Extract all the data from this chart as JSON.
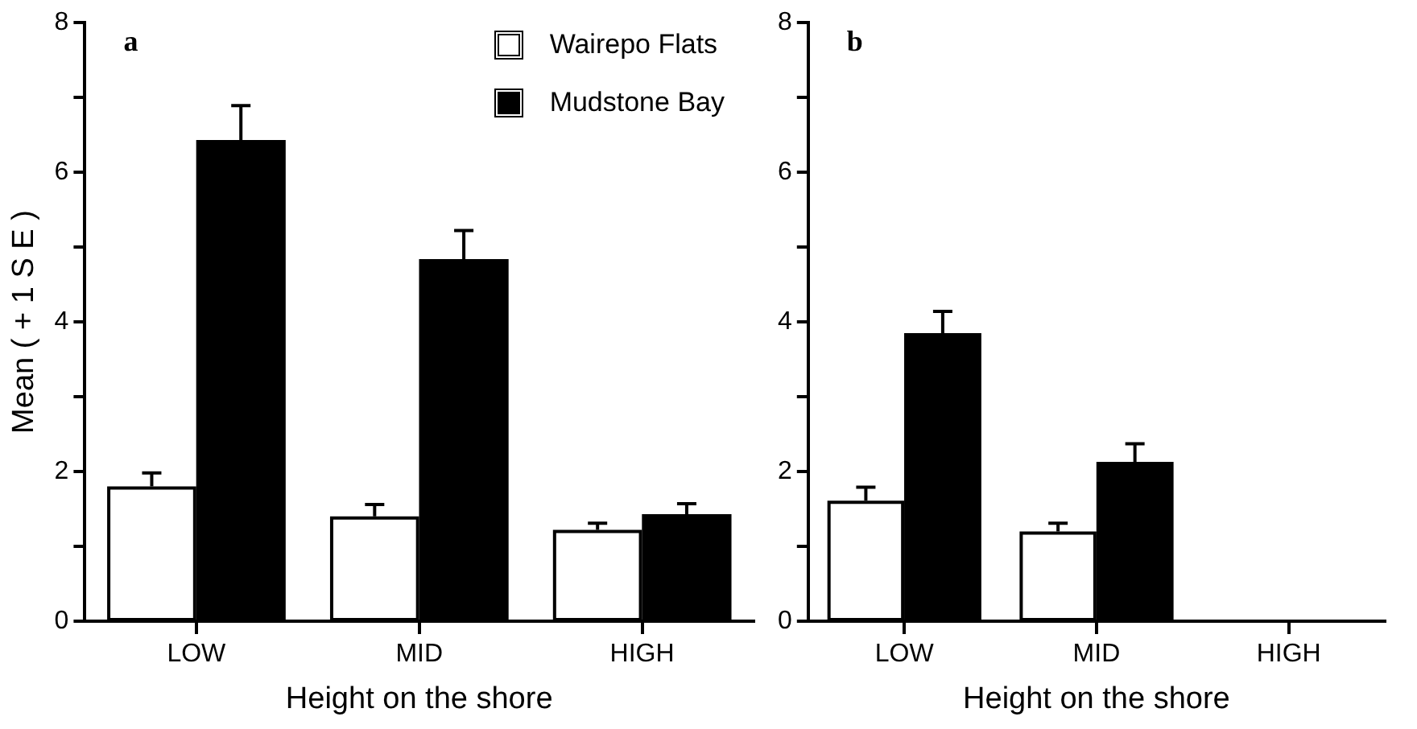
{
  "chart_data": [
    {
      "type": "bar",
      "title": "a",
      "xlabel": "Height on the shore",
      "ylabel": "Mean ( + 1 S E )",
      "categories": [
        "LOW",
        "MID",
        "HIGH"
      ],
      "series": [
        {
          "name": "Wairepo Flats",
          "color": "#ffffff",
          "values": [
            1.8,
            1.4,
            1.22
          ],
          "errors": [
            0.18,
            0.16,
            0.09
          ]
        },
        {
          "name": "Mudstone Bay",
          "color": "#000000",
          "values": [
            6.43,
            4.84,
            1.43
          ],
          "errors": [
            0.46,
            0.38,
            0.14
          ]
        }
      ],
      "ylim": [
        0,
        8
      ],
      "yticks": [
        0,
        {
          "value": 1,
          "label": null
        },
        2,
        {
          "value": 3,
          "label": null
        },
        4,
        {
          "value": 5,
          "label": null
        },
        6,
        {
          "value": 7,
          "label": null
        },
        8
      ],
      "grid": false,
      "legend": "top right"
    },
    {
      "type": "bar",
      "title": "b",
      "xlabel": "Height on the shore",
      "categories": [
        "LOW",
        "MID",
        "HIGH"
      ],
      "series": [
        {
          "color": "#ffffff",
          "values": [
            1.61,
            1.2,
            null
          ],
          "errors": [
            0.18,
            0.11,
            null
          ]
        },
        {
          "color": "#000000",
          "values": [
            3.85,
            2.13,
            null
          ],
          "errors": [
            0.29,
            0.24,
            null
          ]
        }
      ],
      "ylim": [
        0,
        8
      ],
      "yticks": [
        0,
        {
          "value": 1,
          "label": null
        },
        2,
        {
          "value": 3,
          "label": null
        },
        4,
        {
          "value": 5,
          "label": null
        },
        6,
        {
          "value": 7,
          "label": null
        },
        8
      ],
      "grid": false,
      "legend": false
    }
  ]
}
